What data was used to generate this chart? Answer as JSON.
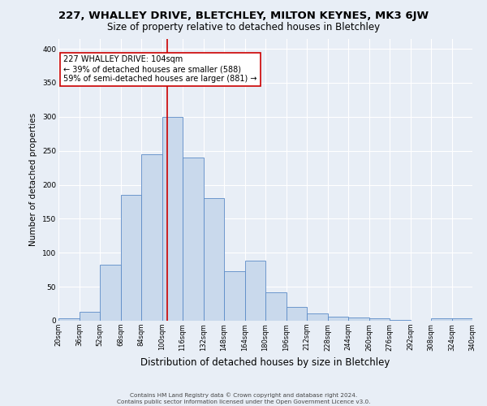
{
  "title": "227, WHALLEY DRIVE, BLETCHLEY, MILTON KEYNES, MK3 6JW",
  "subtitle": "Size of property relative to detached houses in Bletchley",
  "xlabel": "Distribution of detached houses by size in Bletchley",
  "ylabel": "Number of detached properties",
  "footer_line1": "Contains HM Land Registry data © Crown copyright and database right 2024.",
  "footer_line2": "Contains public sector information licensed under the Open Government Licence v3.0.",
  "bar_edges": [
    20,
    36,
    52,
    68,
    84,
    100,
    116,
    132,
    148,
    164,
    180,
    196,
    212,
    228,
    244,
    260,
    276,
    292,
    308,
    324,
    340
  ],
  "bar_heights": [
    3,
    13,
    82,
    185,
    245,
    300,
    240,
    180,
    73,
    88,
    42,
    20,
    11,
    6,
    5,
    3,
    1,
    0,
    3,
    3
  ],
  "bar_color": "#c9d9ec",
  "bar_edge_color": "#5b8bc7",
  "background_color": "#e8eef6",
  "grid_color": "#ffffff",
  "property_size": 104,
  "vline_color": "#cc0000",
  "annotation_text": "227 WHALLEY DRIVE: 104sqm\n← 39% of detached houses are smaller (588)\n59% of semi-detached houses are larger (881) →",
  "annotation_box_color": "white",
  "annotation_box_edge": "#cc0000",
  "ylim": [
    0,
    415
  ],
  "yticks": [
    0,
    50,
    100,
    150,
    200,
    250,
    300,
    350,
    400
  ],
  "title_fontsize": 9.5,
  "subtitle_fontsize": 8.5,
  "xlabel_fontsize": 8.5,
  "ylabel_fontsize": 7.5,
  "tick_fontsize": 6.0,
  "footer_fontsize": 5.2,
  "annot_fontsize": 7.0
}
